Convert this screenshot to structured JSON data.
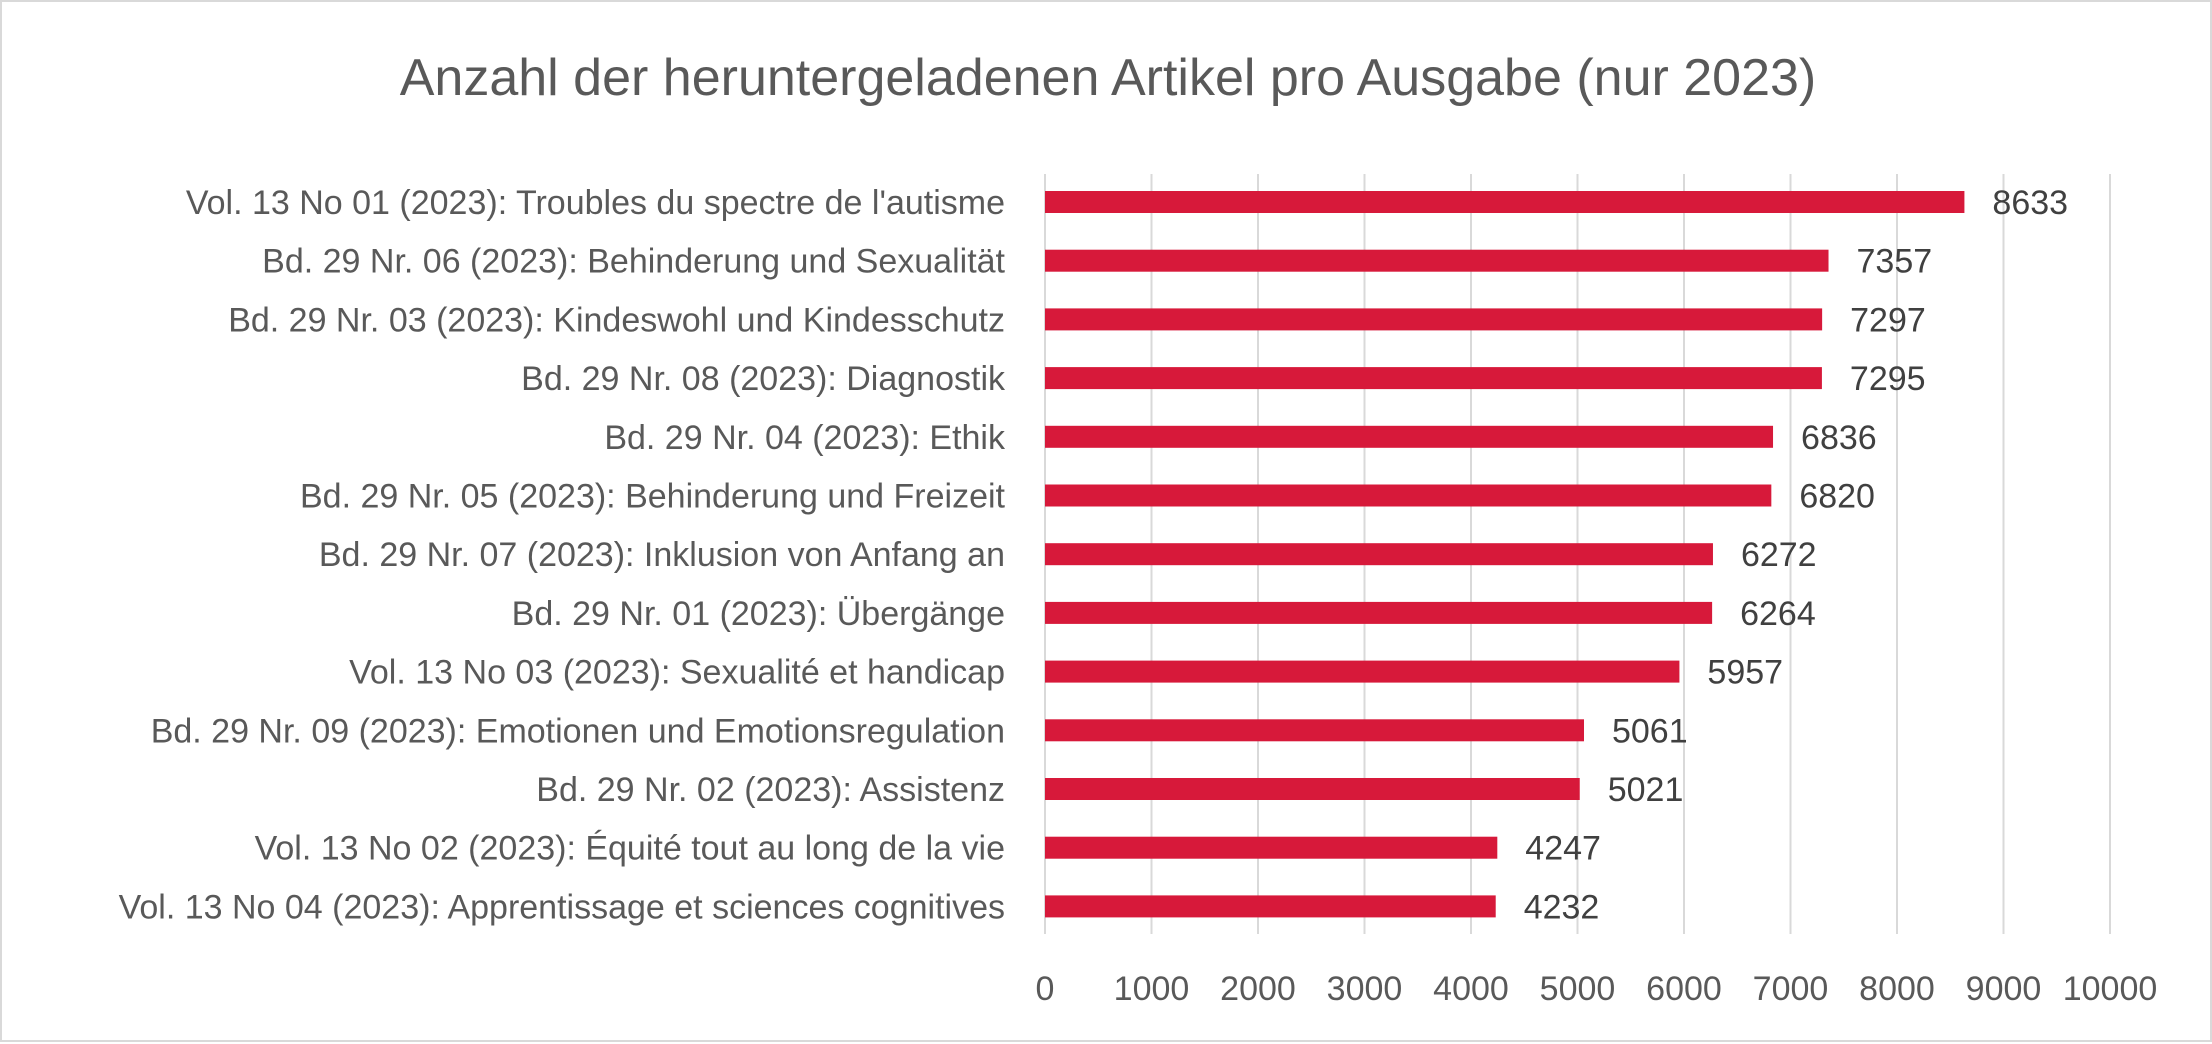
{
  "chart_data": {
    "type": "bar",
    "orientation": "horizontal",
    "title": "Anzahl der heruntergeladenen Artikel pro Ausgabe (nur 2023)",
    "categories": [
      "Vol. 13 No 01 (2023): Troubles du spectre de l'autisme",
      "Bd. 29 Nr. 06 (2023): Behinderung und Sexualität",
      "Bd. 29 Nr. 03 (2023): Kindeswohl und Kindesschutz",
      "Bd. 29 Nr. 08 (2023): Diagnostik",
      "Bd. 29 Nr. 04 (2023): Ethik",
      "Bd. 29 Nr. 05 (2023): Behinderung und Freizeit",
      "Bd. 29 Nr. 07 (2023): Inklusion von Anfang an",
      "Bd. 29 Nr. 01 (2023): Übergänge",
      "Vol. 13 No 03 (2023): Sexualité et handicap",
      "Bd. 29 Nr. 09 (2023): Emotionen und Emotionsregulation",
      "Bd. 29 Nr. 02 (2023): Assistenz",
      "Vol. 13 No 02 (2023): Équité tout au long de la vie",
      "Vol. 13 No 04 (2023): Apprentissage et sciences cognitives"
    ],
    "values": [
      8633,
      7357,
      7297,
      7295,
      6836,
      6820,
      6272,
      6264,
      5957,
      5061,
      5021,
      4247,
      4232
    ],
    "xlim": [
      0,
      10000
    ],
    "xticks": [
      0,
      1000,
      2000,
      3000,
      4000,
      5000,
      6000,
      7000,
      8000,
      9000,
      10000
    ],
    "grid": "vertical",
    "legend": "none",
    "bar_color": "#d7193a",
    "grid_color": "#d9d9d9"
  }
}
